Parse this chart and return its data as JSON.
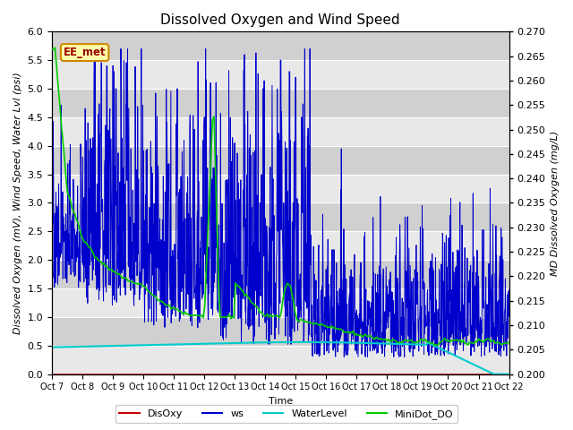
{
  "title": "Dissolved Oxygen and Wind Speed",
  "ylabel_left": "Dissolved Oxygen (mV), Wind Speed, Water Lvl (psi)",
  "ylabel_right": "MD Dissolved Oxygen (mg/L)",
  "xlabel": "Time",
  "ylim_left": [
    0.0,
    6.0
  ],
  "ylim_right": [
    0.2,
    0.27
  ],
  "annotation": "EE_met",
  "x_tick_labels": [
    "Oct 7",
    "Oct 8",
    "Oct 9",
    "Oct 10",
    "Oct 11",
    "Oct 12",
    "Oct 13",
    "Oct 14",
    "Oct 15",
    "Oct 16",
    "Oct 17",
    "Oct 18",
    "Oct 19",
    "Oct 20",
    "Oct 21",
    "Oct 22"
  ],
  "colors": {
    "DisOxy": "#cc0000",
    "ws": "#0000cc",
    "WaterLevel": "#00cccc",
    "MiniDot_DO": "#00cc00"
  },
  "plot_bg": "#d8d8d8",
  "band_light": "#e8e8e8",
  "band_dark": "#d0d0d0",
  "title_fontsize": 11,
  "axis_label_fontsize": 8,
  "tick_fontsize": 8,
  "legend_fontsize": 8
}
